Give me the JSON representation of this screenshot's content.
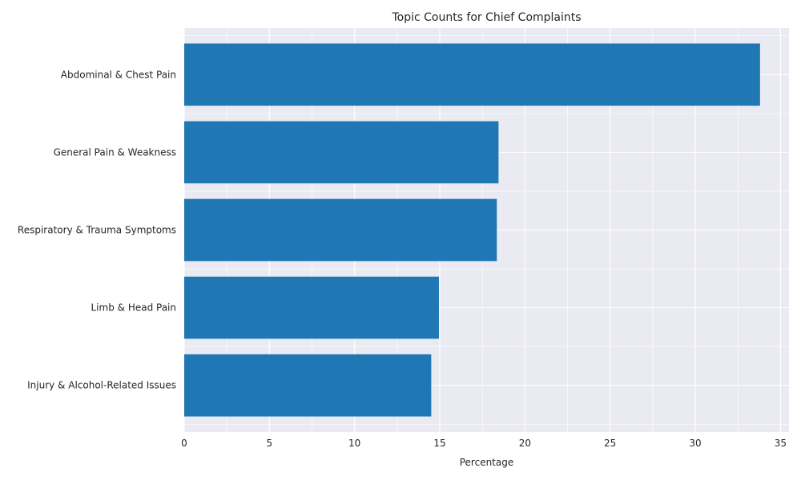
{
  "chart_data": {
    "type": "bar",
    "orientation": "horizontal",
    "title": "Topic Counts for Chief Complaints",
    "xlabel": "Percentage",
    "ylabel": "",
    "categories": [
      "Abdominal & Chest Pain",
      "General Pain & Weakness",
      "Respiratory & Trauma Symptoms",
      "Limb & Head Pain",
      "Injury & Alcohol-Related Issues"
    ],
    "values": [
      33.8,
      18.45,
      18.35,
      14.95,
      14.5
    ],
    "xlim": [
      0,
      35.5
    ],
    "xticks": [
      0,
      5,
      10,
      15,
      20,
      25,
      30,
      35
    ],
    "grid": true,
    "legend": "none",
    "colors": {
      "bar": "#1f77b4",
      "plot_background": "#eaeaf2",
      "grid": "#ffffff",
      "text": "#262626"
    }
  }
}
